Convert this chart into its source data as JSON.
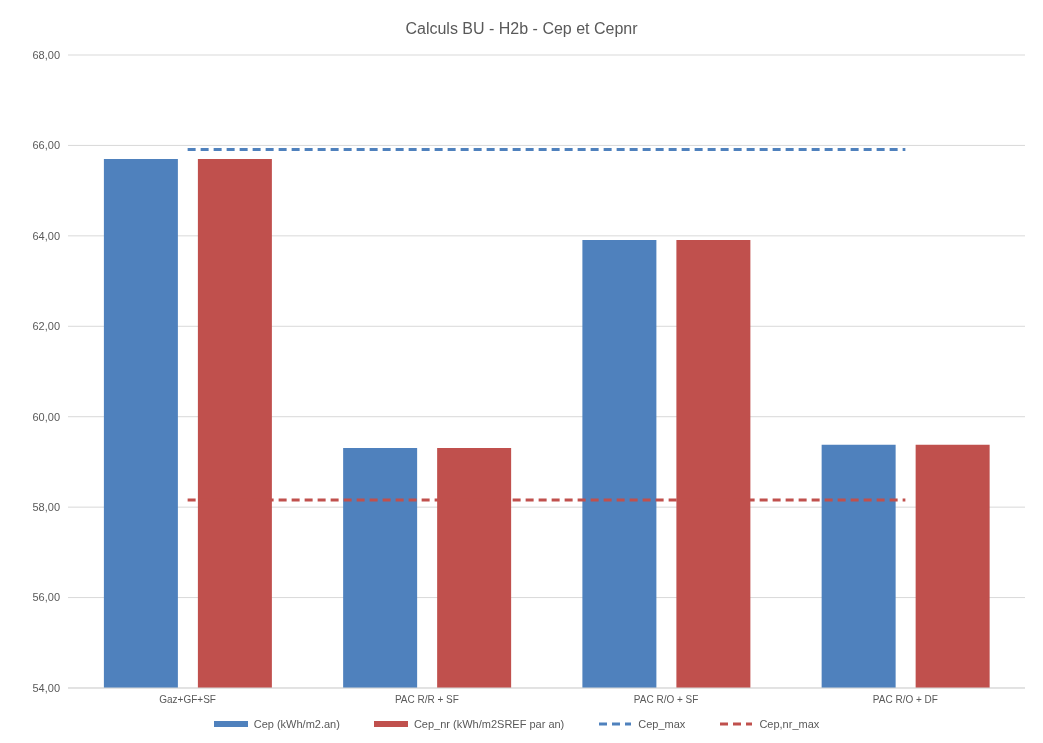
{
  "chart_data": {
    "type": "bar",
    "title": "Calculs BU - H2b - Cep et Cepnr",
    "categories": [
      "Gaz+GF+SF",
      "PAC R/R + SF",
      "PAC R/O + SF",
      "PAC R/O + DF"
    ],
    "series": [
      {
        "name": "Cep (kWh/m2.an)",
        "color": "#4f81bd",
        "values": [
          65.7,
          59.31,
          63.91,
          59.38
        ]
      },
      {
        "name": "Cep_nr (kWh/m2SREF par an)",
        "color": "#c0504d",
        "values": [
          65.7,
          59.31,
          63.91,
          59.38
        ]
      },
      {
        "name": "Cep_max",
        "type": "line",
        "line_style": "dashed",
        "color": "#4f81bd",
        "values": [
          65.91,
          65.91,
          65.91,
          65.91
        ]
      },
      {
        "name": "Cep,nr_max",
        "type": "line",
        "line_style": "dashed",
        "color": "#c0504d",
        "values": [
          58.16,
          58.16,
          58.16,
          58.16
        ]
      }
    ],
    "ylim": [
      54,
      68
    ],
    "yticks": [
      {
        "value": 54,
        "label": "54,00"
      },
      {
        "value": 56,
        "label": "56,00"
      },
      {
        "value": 58,
        "label": "58,00"
      },
      {
        "value": 60,
        "label": "60,00"
      },
      {
        "value": 62,
        "label": "62,00"
      },
      {
        "value": 64,
        "label": "64,00"
      },
      {
        "value": 66,
        "label": "66,00"
      },
      {
        "value": 68,
        "label": "68,00"
      }
    ],
    "grid": "y",
    "legend": "bottom",
    "marker": "none"
  }
}
